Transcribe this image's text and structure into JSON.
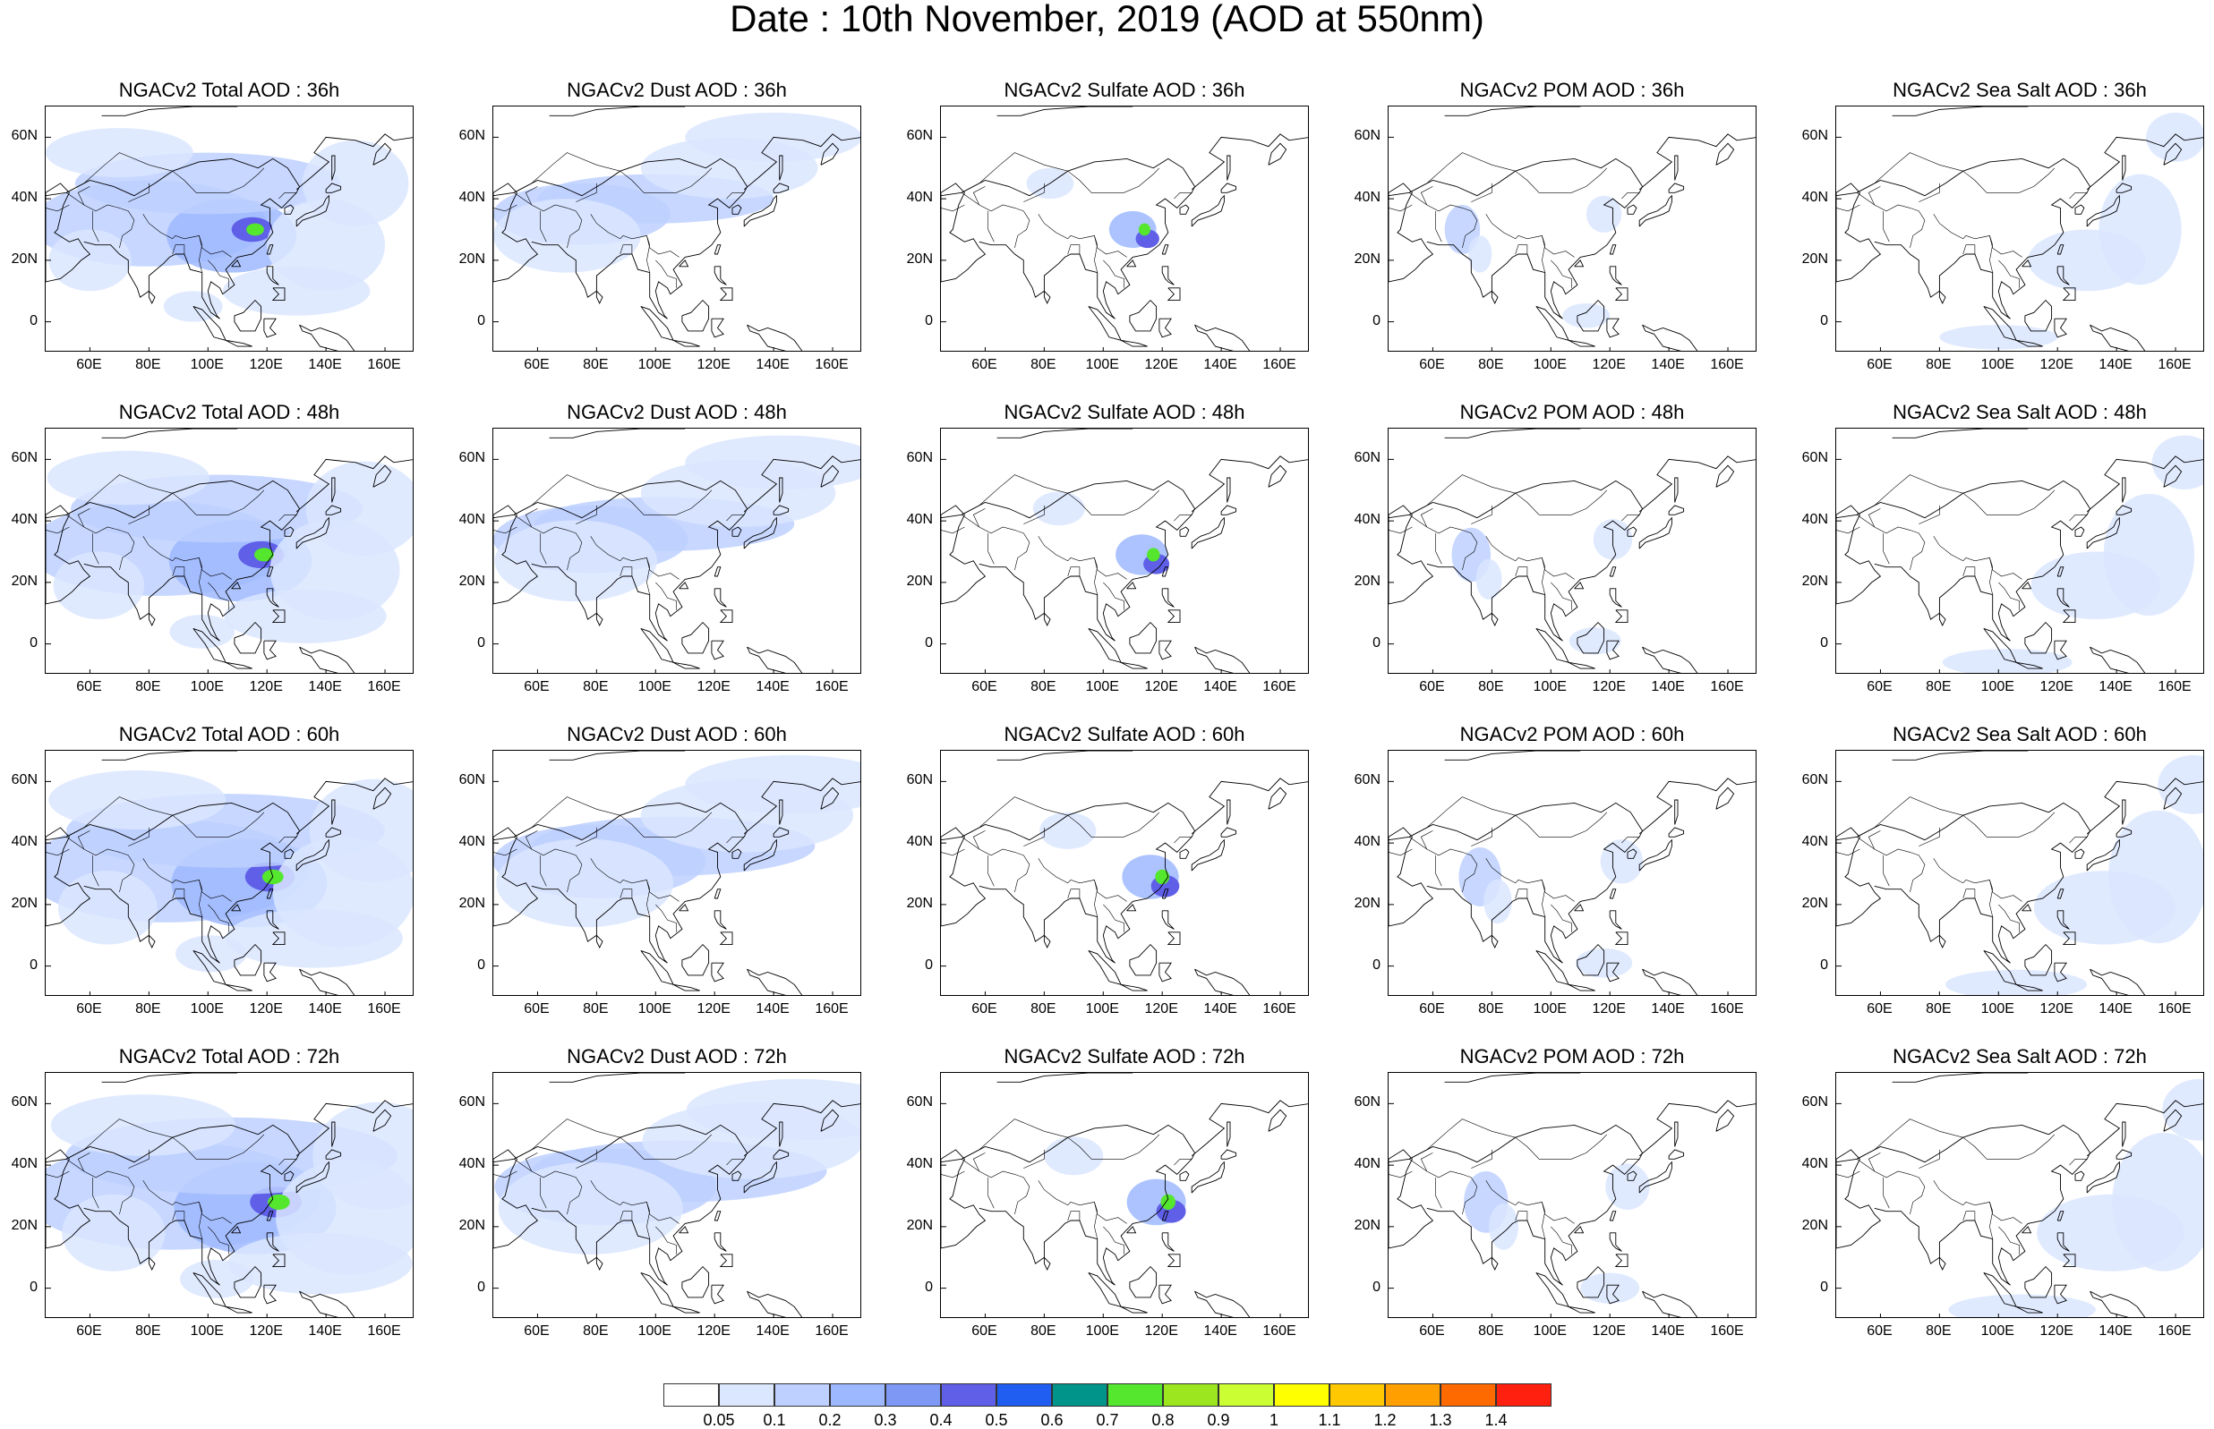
{
  "title": "Date : 10th November, 2019 (AOD at 550nm)",
  "map_extent": {
    "lon_min": 45,
    "lon_max": 170,
    "lat_min": -10,
    "lat_max": 70
  },
  "lat_ticks": [
    "60N",
    "40N",
    "20N",
    "0"
  ],
  "lat_tick_values": [
    60,
    40,
    20,
    0
  ],
  "lon_ticks": [
    "60E",
    "80E",
    "100E",
    "120E",
    "140E",
    "160E"
  ],
  "lon_tick_values": [
    60,
    80,
    100,
    120,
    140,
    160
  ],
  "species": [
    "total",
    "dust",
    "sulfate",
    "pom",
    "seasalt"
  ],
  "forecast_hours": [
    "36h",
    "48h",
    "60h",
    "72h"
  ],
  "panels": [
    {
      "title": "NGACv2 Total AOD : 36h",
      "species": "total",
      "hour": "36h"
    },
    {
      "title": "NGACv2 Dust AOD : 36h",
      "species": "dust",
      "hour": "36h"
    },
    {
      "title": "NGACv2 Sulfate AOD : 36h",
      "species": "sulfate",
      "hour": "36h"
    },
    {
      "title": "NGACv2 POM AOD : 36h",
      "species": "pom",
      "hour": "36h"
    },
    {
      "title": "NGACv2 Sea Salt AOD : 36h",
      "species": "seasalt",
      "hour": "36h"
    },
    {
      "title": "NGACv2 Total AOD : 48h",
      "species": "total",
      "hour": "48h"
    },
    {
      "title": "NGACv2 Dust AOD : 48h",
      "species": "dust",
      "hour": "48h"
    },
    {
      "title": "NGACv2 Sulfate AOD : 48h",
      "species": "sulfate",
      "hour": "48h"
    },
    {
      "title": "NGACv2 POM AOD : 48h",
      "species": "pom",
      "hour": "48h"
    },
    {
      "title": "NGACv2 Sea Salt AOD : 48h",
      "species": "seasalt",
      "hour": "48h"
    },
    {
      "title": "NGACv2 Total AOD : 60h",
      "species": "total",
      "hour": "60h"
    },
    {
      "title": "NGACv2 Dust AOD : 60h",
      "species": "dust",
      "hour": "60h"
    },
    {
      "title": "NGACv2 Sulfate AOD : 60h",
      "species": "sulfate",
      "hour": "60h"
    },
    {
      "title": "NGACv2 POM AOD : 60h",
      "species": "pom",
      "hour": "60h"
    },
    {
      "title": "NGACv2 Sea Salt AOD : 60h",
      "species": "seasalt",
      "hour": "60h"
    },
    {
      "title": "NGACv2 Total AOD : 72h",
      "species": "total",
      "hour": "72h"
    },
    {
      "title": "NGACv2 Dust AOD : 72h",
      "species": "dust",
      "hour": "72h"
    },
    {
      "title": "NGACv2 Sulfate AOD : 72h",
      "species": "sulfate",
      "hour": "72h"
    },
    {
      "title": "NGACv2 POM AOD : 72h",
      "species": "pom",
      "hour": "72h"
    },
    {
      "title": "NGACv2 Sea Salt  AOD : 72h",
      "species": "seasalt",
      "hour": "72h"
    }
  ],
  "colorbar": {
    "labels": [
      "0.05",
      "0.1",
      "0.2",
      "0.3",
      "0.4",
      "0.5",
      "0.6",
      "0.7",
      "0.8",
      "0.9",
      "1",
      "1.1",
      "1.2",
      "1.3",
      "1.4"
    ],
    "colors": [
      "#ffffff",
      "#dbe6ff",
      "#bdd0ff",
      "#9db8ff",
      "#7e98f5",
      "#5f5fe8",
      "#1f5ef0",
      "#00948a",
      "#55e62e",
      "#9be61e",
      "#ccff33",
      "#ffff00",
      "#ffc800",
      "#ffa000",
      "#ff6a00",
      "#ff2010"
    ]
  },
  "coastline_color": "#000000"
}
